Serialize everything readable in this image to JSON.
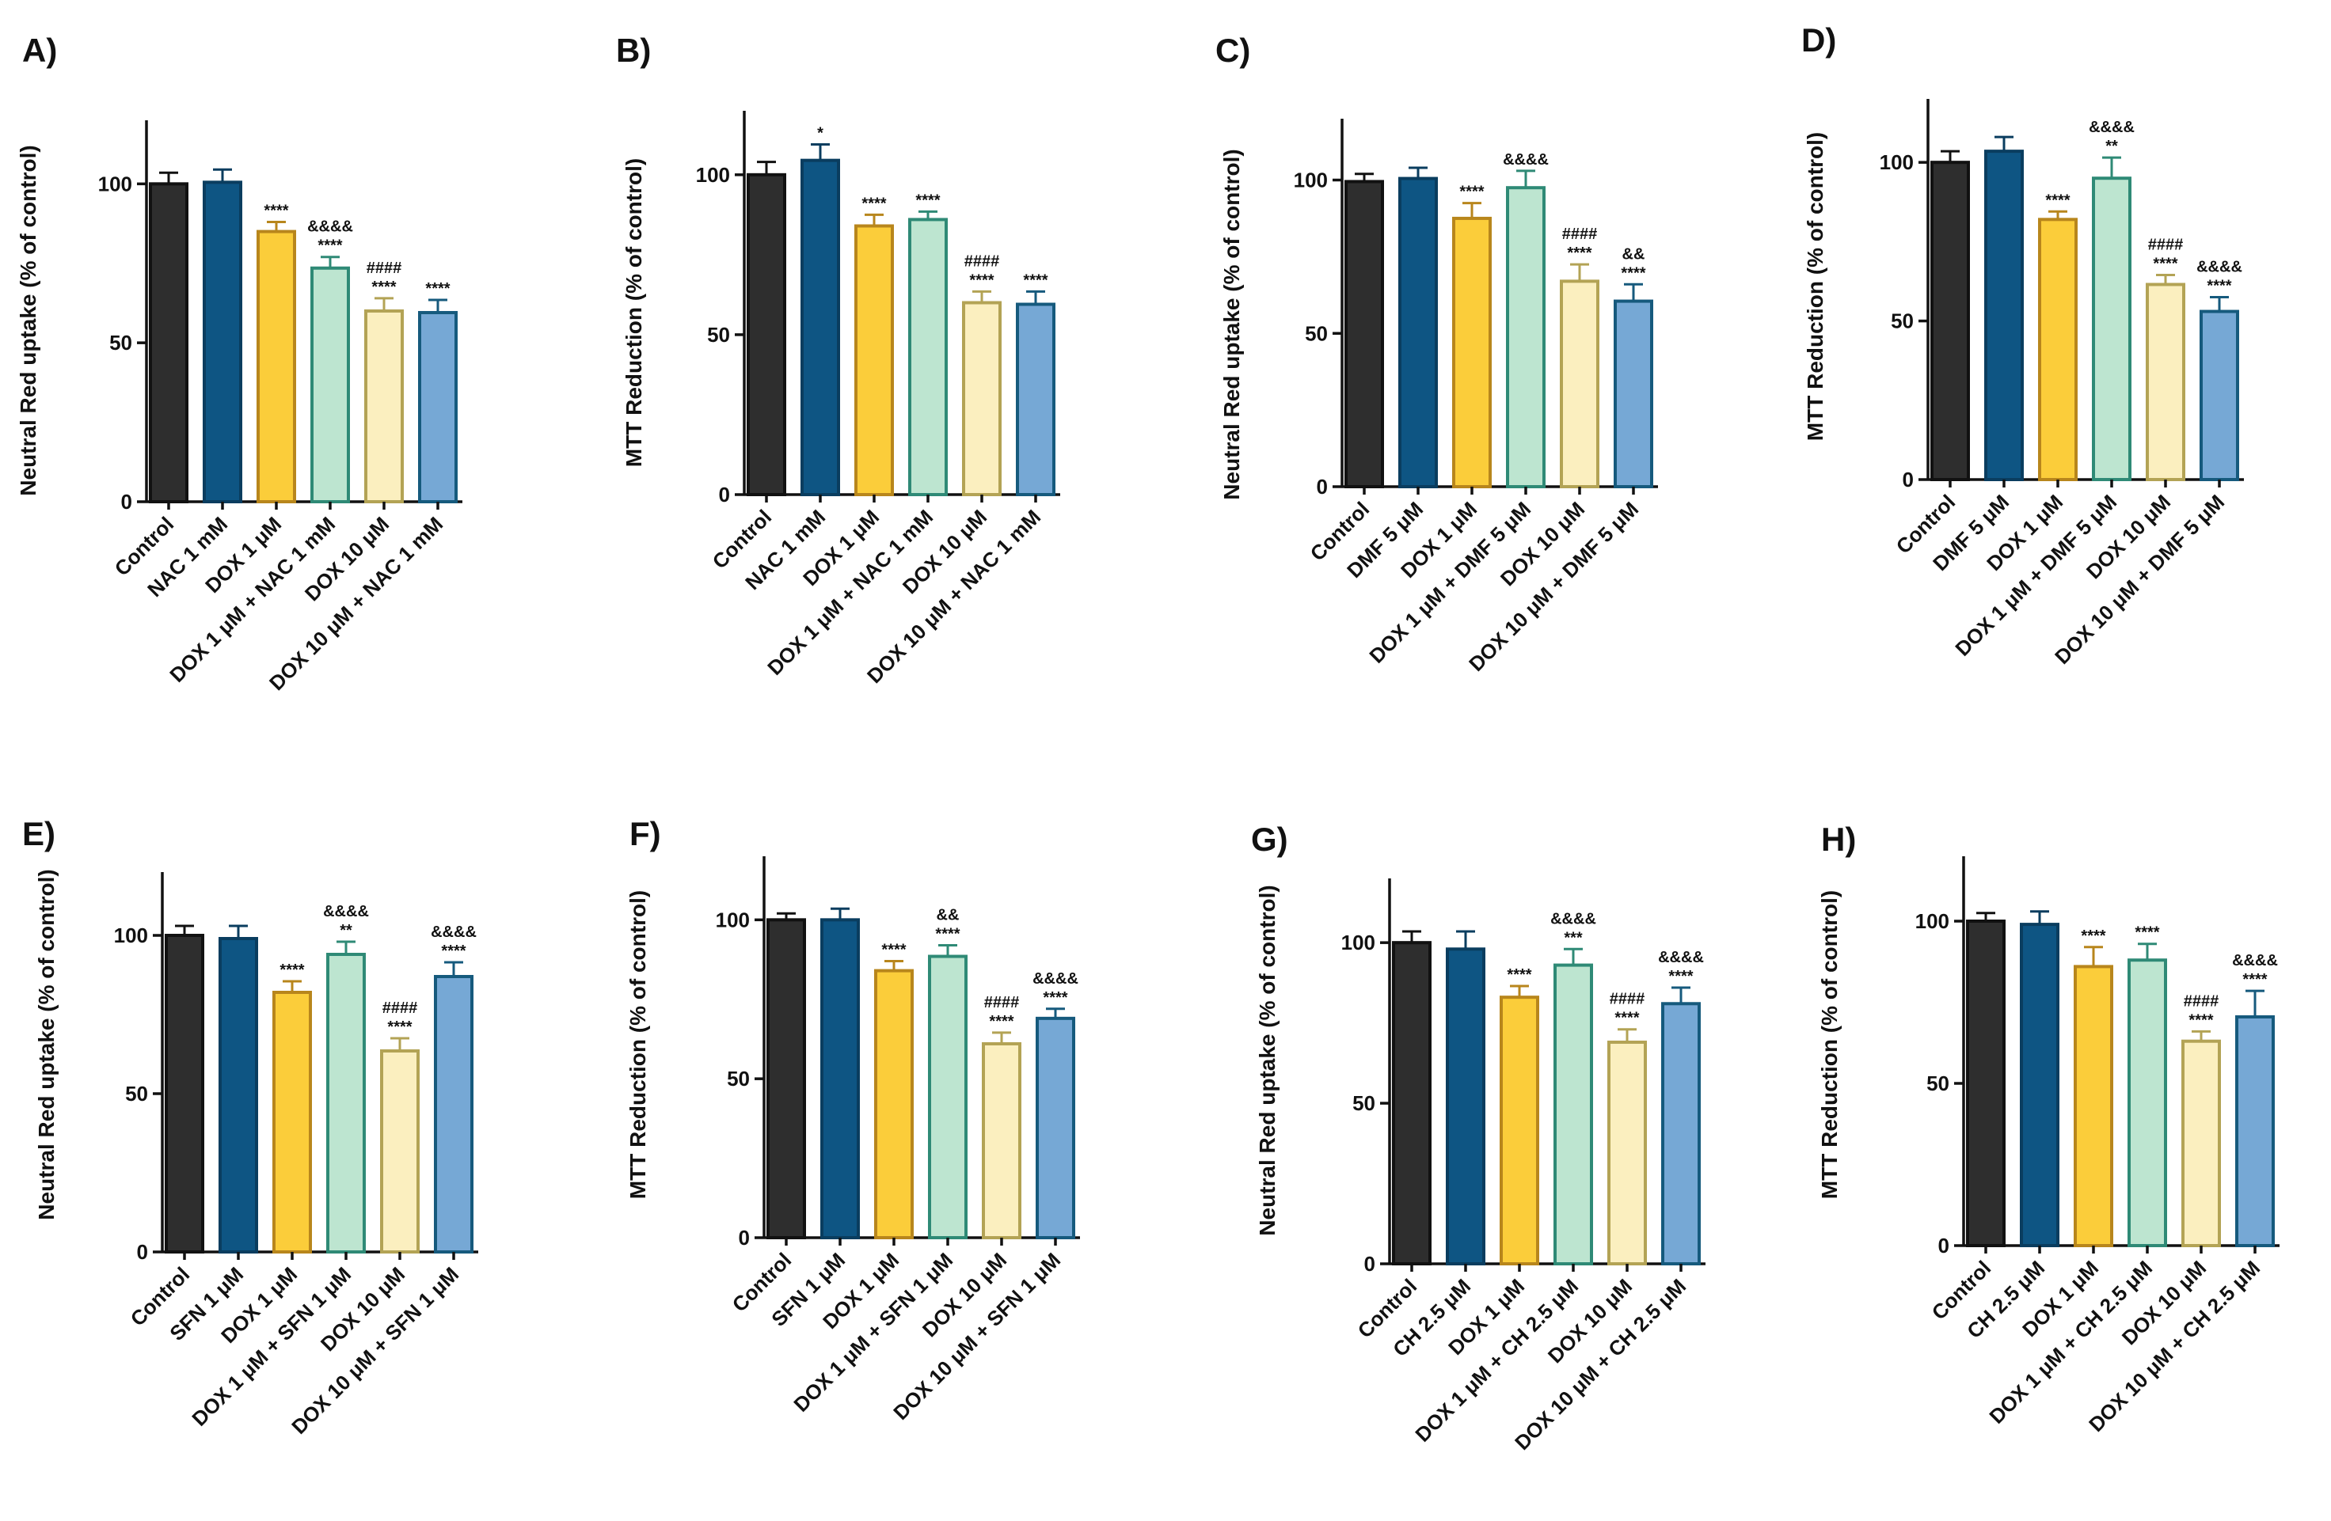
{
  "colors": {
    "fills": [
      "#2e2e2e",
      "#0e5583",
      "#fbcd3a",
      "#bde5d0",
      "#fbefbf",
      "#76a8d5"
    ],
    "strokes": [
      "#111111",
      "#0a3d5f",
      "#b8861c",
      "#2f8a76",
      "#b3a355",
      "#165a7d"
    ]
  },
  "chart_data": [
    {
      "type": "bar",
      "panel": "A)",
      "ylabel": "Neutral Red uptake (% of control)",
      "ylim": [
        0,
        120
      ],
      "yticks": [
        0,
        50,
        100
      ],
      "categories": [
        "Control",
        "NAC 1 mM",
        "DOX 1 μM",
        "DOX 1 μM + NAC 1 mM",
        "DOX 10 μM",
        "DOX 10 μM + NAC 1 mM"
      ],
      "values": [
        100,
        100.5,
        85,
        73.5,
        60,
        59.5
      ],
      "errors": [
        3.5,
        4,
        3,
        3.5,
        4,
        4
      ],
      "significance": [
        [],
        [],
        [
          "****"
        ],
        [
          "&&&&",
          "****"
        ],
        [
          "####",
          "****"
        ],
        [
          "****"
        ]
      ]
    },
    {
      "type": "bar",
      "panel": "B)",
      "ylabel": "MTT Reduction (% of control)",
      "ylim": [
        0,
        120
      ],
      "yticks": [
        0,
        50,
        100
      ],
      "categories": [
        "Control",
        "NAC 1 mM",
        "DOX 1 μM",
        "DOX 1 μM + NAC 1 mM",
        "DOX 10 μM",
        "DOX 10 μM + NAC 1 mM"
      ],
      "values": [
        100,
        104.5,
        84,
        86,
        60,
        59.5
      ],
      "errors": [
        4,
        5,
        3.5,
        2.5,
        3.5,
        4
      ],
      "significance": [
        [],
        [
          "*"
        ],
        [
          "****"
        ],
        [
          "****"
        ],
        [
          "####",
          "****"
        ],
        [
          "****"
        ]
      ]
    },
    {
      "type": "bar",
      "panel": "C)",
      "ylabel": "Neutral Red uptake (% of control)",
      "ylim": [
        0,
        120
      ],
      "yticks": [
        0,
        50,
        100
      ],
      "categories": [
        "Control",
        "DMF 5 μM",
        "DOX 1 μM",
        "DOX 1 μM + DMF 5 μM",
        "DOX 10 μM",
        "DOX 10 μM + DMF 5 μM"
      ],
      "values": [
        99.5,
        100.5,
        87.5,
        97.5,
        67,
        60.5
      ],
      "errors": [
        2.5,
        3.5,
        5,
        5.5,
        5.5,
        5.5
      ],
      "significance": [
        [],
        [],
        [
          "****"
        ],
        [
          "&&&&"
        ],
        [
          "####",
          "****"
        ],
        [
          "&&",
          "****"
        ]
      ]
    },
    {
      "type": "bar",
      "panel": "D)",
      "ylabel": "MTT Reduction (% of control)",
      "ylim": [
        0,
        120
      ],
      "yticks": [
        0,
        50,
        100
      ],
      "categories": [
        "Control",
        "DMF 5 μM",
        "DOX 1 μM",
        "DOX 1 μM + DMF 5 μM",
        "DOX 10 μM",
        "DOX 10 μM + DMF 5 μM"
      ],
      "values": [
        100,
        103.5,
        82,
        95,
        61.5,
        53
      ],
      "errors": [
        3.5,
        4.5,
        2.5,
        6.5,
        3,
        4.5
      ],
      "significance": [
        [],
        [],
        [
          "****"
        ],
        [
          "&&&&",
          "**"
        ],
        [
          "####",
          "****"
        ],
        [
          "&&&&",
          "****"
        ]
      ]
    },
    {
      "type": "bar",
      "panel": "E)",
      "ylabel": "Neutral Red uptake (% of control)",
      "ylim": [
        0,
        120
      ],
      "yticks": [
        0,
        50,
        100
      ],
      "categories": [
        "Control",
        "SFN 1 μM",
        "DOX 1 μM",
        "DOX 1 μM + SFN 1 μM",
        "DOX 10 μM",
        "DOX 10 μM + SFN 1 μM"
      ],
      "values": [
        100,
        99,
        82,
        94,
        63.5,
        87
      ],
      "errors": [
        3,
        4,
        3.5,
        4,
        4,
        4.5
      ],
      "significance": [
        [],
        [],
        [
          "****"
        ],
        [
          "&&&&",
          "**"
        ],
        [
          "####",
          "****"
        ],
        [
          "&&&&",
          "****"
        ]
      ]
    },
    {
      "type": "bar",
      "panel": "F)",
      "ylabel": "MTT Reduction (% of control)",
      "ylim": [
        0,
        120
      ],
      "yticks": [
        0,
        50,
        100
      ],
      "categories": [
        "Control",
        "SFN 1 μM",
        "DOX 1 μM",
        "DOX 1 μM + SFN 1 μM",
        "DOX 10 μM",
        "DOX 10 μM + SFN 1 μM"
      ],
      "values": [
        100,
        100,
        84,
        88.5,
        61,
        69
      ],
      "errors": [
        2,
        3.5,
        3,
        3.5,
        3.5,
        3
      ],
      "significance": [
        [],
        [],
        [
          "****"
        ],
        [
          "&&",
          "****"
        ],
        [
          "####",
          "****"
        ],
        [
          "&&&&",
          "****"
        ]
      ]
    },
    {
      "type": "bar",
      "panel": "G)",
      "ylabel": "Neutral Red uptake (% of control)",
      "ylim": [
        0,
        120
      ],
      "yticks": [
        0,
        50,
        100
      ],
      "categories": [
        "Control",
        "CH 2.5 μM",
        "DOX 1 μM",
        "DOX 1 μM + CH 2.5 μM",
        "DOX 10 μM",
        "DOX 10 μM + CH 2.5 μM"
      ],
      "values": [
        100,
        98,
        83,
        93,
        69,
        81
      ],
      "errors": [
        3.5,
        5.5,
        3.5,
        5,
        4,
        5
      ],
      "significance": [
        [],
        [],
        [
          "****"
        ],
        [
          "&&&&",
          "***"
        ],
        [
          "####",
          "****"
        ],
        [
          "&&&&",
          "****"
        ]
      ]
    },
    {
      "type": "bar",
      "panel": "H)",
      "ylabel": "MTT Reduction (% of control)",
      "ylim": [
        0,
        120
      ],
      "yticks": [
        0,
        50,
        100
      ],
      "categories": [
        "Control",
        "CH 2.5 μM",
        "DOX 1 μM",
        "DOX 1 μM + CH 2.5 μM",
        "DOX 10 μM",
        "DOX 10 μM + CH 2.5 μM"
      ],
      "values": [
        100,
        99,
        86,
        88,
        63,
        70.5
      ],
      "errors": [
        2.5,
        4,
        6,
        5,
        3,
        8
      ],
      "significance": [
        [],
        [],
        [
          "****"
        ],
        [
          "****"
        ],
        [
          "####",
          "****"
        ],
        [
          "&&&&",
          "****"
        ]
      ]
    }
  ]
}
